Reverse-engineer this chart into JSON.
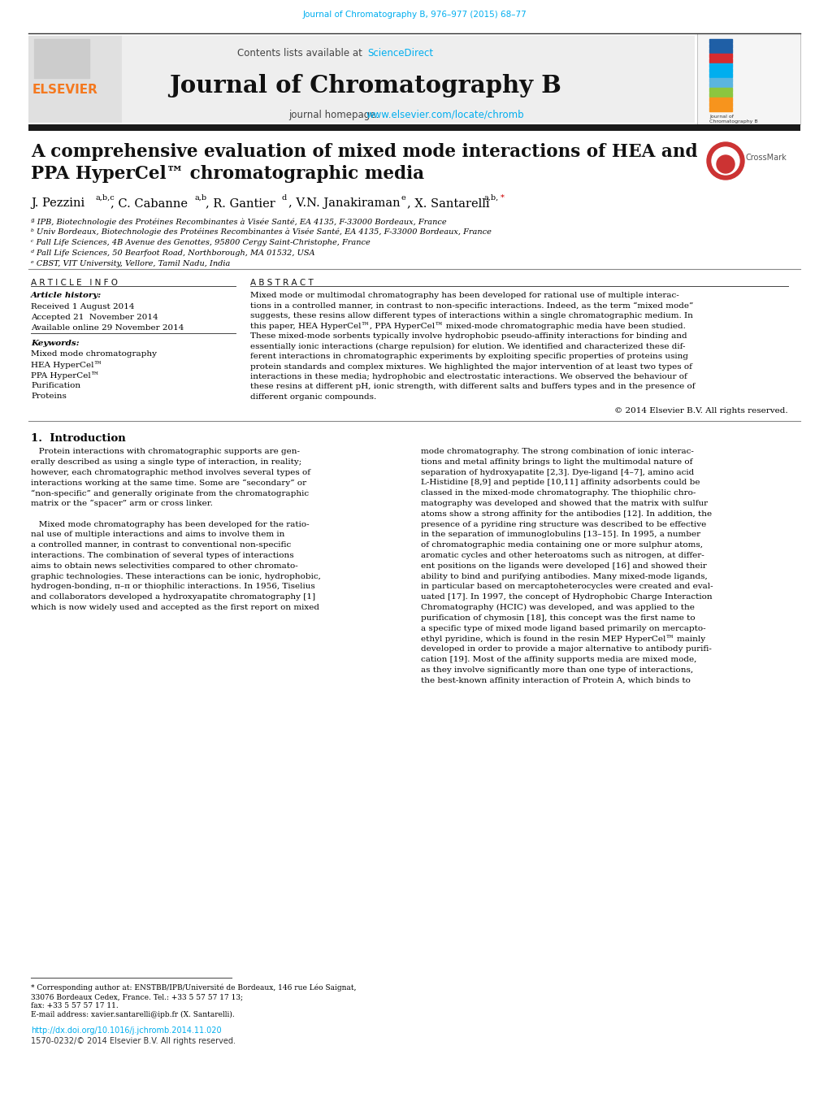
{
  "journal_ref": "Journal of Chromatography B, 976–977 (2015) 68–77",
  "contents_text": "Contents lists available at ",
  "sciencedirect": "ScienceDirect",
  "journal_name": "Journal of Chromatography B",
  "journal_homepage_text": "journal homepage: ",
  "journal_url": "www.elsevier.com/locate/chromb",
  "paper_title_line1": "A comprehensive evaluation of mixed mode interactions of HEA and",
  "paper_title_line2": "PPA HyperCel™ chromatographic media",
  "affil_a": "ª IPB, Biotechnologie des Protéines Recombinantes à Visée Santé, EA 4135, F-33000 Bordeaux, France",
  "affil_b": "ᵇ Univ Bordeaux, Biotechnologie des Protéines Recombinantes à Visée Santé, EA 4135, F-33000 Bordeaux, France",
  "affil_c": "ᶜ Pall Life Sciences, 4B Avenue des Genottes, 95800 Cergy Saint-Christophe, France",
  "affil_d": "ᵈ Pall Life Sciences, 50 Bearfoot Road, Northborough, MA 01532, USA",
  "affil_e": "ᵉ CBST, VIT University, Vellore, Tamil Nadu, India",
  "article_info_title": "A R T I C L E   I N F O",
  "article_history_title": "Article history:",
  "received": "Received 1 August 2014",
  "accepted": "Accepted 21  November 2014",
  "available": "Available online 29 November 2014",
  "keywords_title": "Keywords:",
  "keywords": [
    "Mixed mode chromatography",
    "HEA HyperCel™",
    "PPA HyperCel™",
    "Purification",
    "Proteins"
  ],
  "abstract_title": "A B S T R A C T",
  "copyright": "© 2014 Elsevier B.V. All rights reserved.",
  "intro_title": "1.  Introduction",
  "doi_text": "http://dx.doi.org/10.1016/j.jchromb.2014.11.020",
  "issn_text": "1570-0232/© 2014 Elsevier B.V. All rights reserved.",
  "bg_color": "#ffffff",
  "dark_bar": "#1a1a1a",
  "cyan_color": "#00aeef",
  "bar_colors_cover": [
    "#1f5fa6",
    "#1f5fa6",
    "#1f5fa6",
    "#d62b2f",
    "#d62b2f",
    "#00aeef",
    "#00aeef",
    "#00aeef",
    "#5bb5e0",
    "#5bb5e0",
    "#8cc63f",
    "#8cc63f",
    "#f7941d",
    "#f7941d",
    "#f7941d"
  ]
}
